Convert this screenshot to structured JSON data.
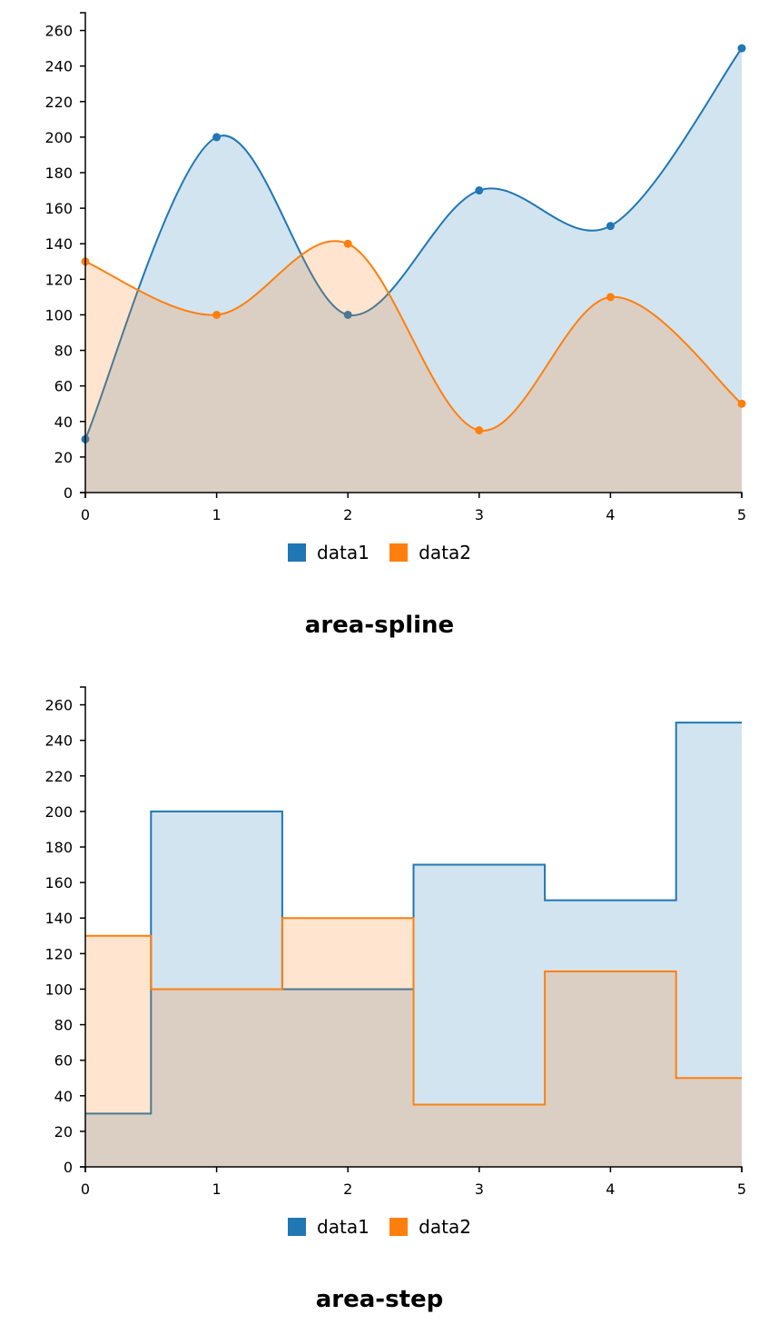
{
  "chart_data": [
    {
      "type": "area",
      "interpolation": "spline",
      "title": "area-spline",
      "x": [
        0,
        1,
        2,
        3,
        4,
        5
      ],
      "series": [
        {
          "name": "data1",
          "values": [
            30,
            200,
            100,
            170,
            150,
            250
          ],
          "color": "#1f77b4"
        },
        {
          "name": "data2",
          "values": [
            130,
            100,
            140,
            35,
            110,
            50
          ],
          "color": "#ff7f0e"
        }
      ],
      "ylim": [
        0,
        270
      ],
      "xlim": [
        0,
        5
      ],
      "yticks": [
        0,
        20,
        40,
        60,
        80,
        100,
        120,
        140,
        160,
        180,
        200,
        220,
        240,
        260
      ],
      "xticks": [
        0,
        1,
        2,
        3,
        4,
        5
      ],
      "grid": false,
      "legend_position": "bottom"
    },
    {
      "type": "area",
      "interpolation": "step",
      "title": "area-step",
      "x": [
        0,
        1,
        2,
        3,
        4,
        5
      ],
      "series": [
        {
          "name": "data1",
          "values": [
            30,
            200,
            100,
            170,
            150,
            250
          ],
          "color": "#1f77b4"
        },
        {
          "name": "data2",
          "values": [
            130,
            100,
            140,
            35,
            110,
            50
          ],
          "color": "#ff7f0e"
        }
      ],
      "ylim": [
        0,
        270
      ],
      "xlim": [
        0,
        5
      ],
      "yticks": [
        0,
        20,
        40,
        60,
        80,
        100,
        120,
        140,
        160,
        180,
        200,
        220,
        240,
        260
      ],
      "xticks": [
        0,
        1,
        2,
        3,
        4,
        5
      ],
      "grid": false,
      "legend_position": "bottom"
    }
  ]
}
